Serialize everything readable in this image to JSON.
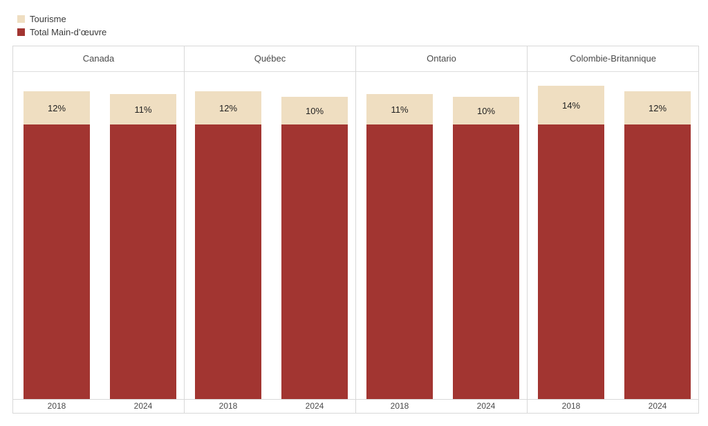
{
  "legend": {
    "items": [
      {
        "key": "tourisme",
        "label": "Tourisme",
        "color": "#EFDEC1"
      },
      {
        "key": "total-main-doeuvre",
        "label": "Total Main-d’œuvre",
        "color": "#A23531"
      }
    ]
  },
  "colors": {
    "tourisme": "#EFDEC1",
    "total_main_doeuvre": "#A23531",
    "border": "#D8D8D8",
    "header_text": "#4A4A4A",
    "value_label_text": "#1F1F1F",
    "background": "#FFFFFF"
  },
  "chart_data": {
    "type": "bar",
    "subtype": "small-multiples-stacked-columns",
    "title": "",
    "legend_position": "top-left",
    "gridlines": false,
    "categories": [
      "2018",
      "2024"
    ],
    "series": [
      {
        "name": "Tourisme",
        "key": "tourisme",
        "color": "#EFDEC1",
        "role": "top",
        "unit": "percent",
        "values_labeled_inside": true
      },
      {
        "name": "Total Main-d’œuvre",
        "key": "total-main-doeuvre",
        "color": "#A23531",
        "role": "base",
        "base_value": 100
      }
    ],
    "panels": [
      {
        "key": "canada",
        "label": "Canada",
        "bars": [
          {
            "category": "2018",
            "tourisme_value": 12,
            "tourisme_label": "12%"
          },
          {
            "category": "2024",
            "tourisme_value": 11,
            "tourisme_label": "11%"
          }
        ]
      },
      {
        "key": "quebec",
        "label": "Québec",
        "bars": [
          {
            "category": "2018",
            "tourisme_value": 12,
            "tourisme_label": "12%"
          },
          {
            "category": "2024",
            "tourisme_value": 10,
            "tourisme_label": "10%"
          }
        ]
      },
      {
        "key": "ontario",
        "label": "Ontario",
        "bars": [
          {
            "category": "2018",
            "tourisme_value": 11,
            "tourisme_label": "11%"
          },
          {
            "category": "2024",
            "tourisme_value": 10,
            "tourisme_label": "10%"
          }
        ]
      },
      {
        "key": "colombie-britannique",
        "label": "Colombie-Britannique",
        "bars": [
          {
            "category": "2018",
            "tourisme_value": 14,
            "tourisme_label": "14%"
          },
          {
            "category": "2024",
            "tourisme_value": 12,
            "tourisme_label": "12%"
          }
        ]
      }
    ]
  }
}
